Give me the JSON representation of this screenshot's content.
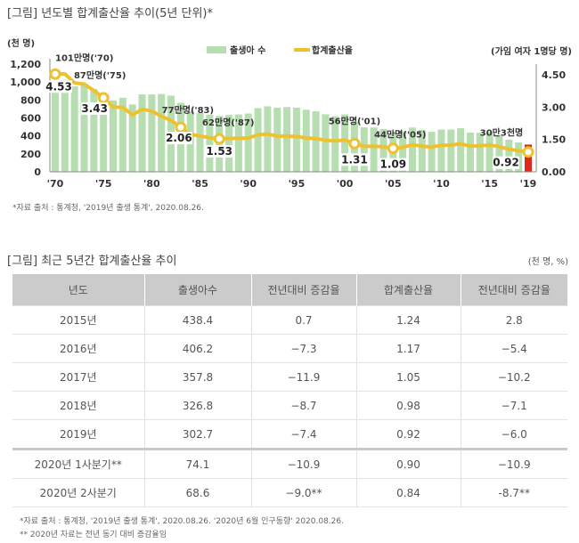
{
  "figure1": {
    "title": "[그림] 년도별 합계출산율 추이(5년 단위)*",
    "source": "*자료 출처 : 통계청, '2019년 출생 통계', 2020.08.26."
  },
  "chart_data": {
    "type": "bar+line",
    "left_axis_unit": "(천 명)",
    "right_axis_unit": "(가임 여자 1명당 명)",
    "left_ticks": [
      "0",
      "200",
      "400",
      "600",
      "800",
      "1,000",
      "1,200"
    ],
    "left_ylim": [
      0,
      1200
    ],
    "right_ticks": [
      "0.00",
      "1.50",
      "3.00",
      "4.50"
    ],
    "right_ylim": [
      0,
      4.5
    ],
    "x_ticks": [
      "'70",
      "'75",
      "'80",
      "'85",
      "'90",
      "'95",
      "'00",
      "'05",
      "'10",
      "'15",
      "'19"
    ],
    "legend": {
      "bars": "출생아 수",
      "line": "합계출산율",
      "position": "top-center"
    },
    "years": [
      1970,
      1971,
      1972,
      1973,
      1974,
      1975,
      1976,
      1977,
      1978,
      1979,
      1980,
      1981,
      1982,
      1983,
      1984,
      1985,
      1986,
      1987,
      1988,
      1989,
      1990,
      1991,
      1992,
      1993,
      1994,
      1995,
      1996,
      1997,
      1998,
      1999,
      2000,
      2001,
      2002,
      2003,
      2004,
      2005,
      2006,
      2007,
      2008,
      2009,
      2010,
      2011,
      2012,
      2013,
      2014,
      2015,
      2016,
      2017,
      2018,
      2019
    ],
    "series": [
      {
        "name": "출생아 수",
        "type": "bar",
        "color": "#b6deb0",
        "highlight_color": "#e0261f",
        "values": [
          1007,
          1024,
          952,
          965,
          922,
          874,
          796,
          825,
          750,
          862,
          862,
          867,
          848,
          769,
          674,
          655,
          636,
          623,
          633,
          639,
          649,
          709,
          730,
          715,
          721,
          715,
          691,
          675,
          641,
          620,
          640,
          557,
          495,
          493,
          476,
          435,
          448,
          493,
          466,
          445,
          470,
          471,
          485,
          437,
          435,
          438,
          406,
          358,
          327,
          303
        ]
      },
      {
        "name": "합계출산율",
        "type": "line",
        "color": "#eec22f",
        "values": [
          4.53,
          4.54,
          4.12,
          4.07,
          3.77,
          3.43,
          3.0,
          2.99,
          2.64,
          2.9,
          2.82,
          2.57,
          2.39,
          2.06,
          1.74,
          1.66,
          1.58,
          1.53,
          1.55,
          1.56,
          1.57,
          1.71,
          1.76,
          1.65,
          1.66,
          1.63,
          1.57,
          1.54,
          1.46,
          1.43,
          1.48,
          1.31,
          1.18,
          1.19,
          1.16,
          1.09,
          1.13,
          1.26,
          1.19,
          1.15,
          1.23,
          1.24,
          1.3,
          1.19,
          1.21,
          1.24,
          1.17,
          1.05,
          0.98,
          0.92
        ]
      }
    ],
    "annotations": [
      {
        "year": 1970,
        "births": "101만명('70)",
        "tfr": "4.53"
      },
      {
        "year": 1975,
        "births": "87만명('75)",
        "tfr": "3.43"
      },
      {
        "year": 1983,
        "births": "77만명('83)",
        "tfr": "2.06"
      },
      {
        "year": 1987,
        "births": "62만명('87)",
        "tfr": "1.53"
      },
      {
        "year": 2001,
        "births": "56만명('01)",
        "tfr": "1.31"
      },
      {
        "year": 2005,
        "births": "44만명('05)",
        "tfr": "1.09"
      },
      {
        "year": 2019,
        "births": "30만3천명",
        "tfr": "0.92"
      }
    ]
  },
  "figure2": {
    "title": "[그림] 최근 5년간 합계출산율 추이",
    "unit": "(천 명, %)",
    "headers": [
      "년도",
      "출생아수",
      "전년대비 증감율",
      "합계출산율",
      "전년대비 증감율"
    ],
    "rows": [
      [
        "2015년",
        "438.4",
        "0.7",
        "1.24",
        "2.8"
      ],
      [
        "2016년",
        "406.2",
        "−7.3",
        "1.17",
        "−5.4"
      ],
      [
        "2017년",
        "357.8",
        "−11.9",
        "1.05",
        "−10.2"
      ],
      [
        "2018년",
        "326.8",
        "−8.7",
        "0.98",
        "−7.1"
      ],
      [
        "2019년",
        "302.7",
        "−7.4",
        "0.92",
        "−6.0"
      ],
      [
        "2020년 1사분기**",
        "74.1",
        "−10.9",
        "0.90",
        "−10.9"
      ],
      [
        "2020년 2사분기",
        "68.6",
        "−9.0**",
        "0.84",
        "-8.7**"
      ]
    ],
    "note1": "*자료 출처 : 통계청, '2019년 출생 통계', 2020.08.26. '2020년 6월 인구동향' 2020.08.26.",
    "note2": "** 2020년 자료는 전년 동기 대비 증감율임"
  }
}
